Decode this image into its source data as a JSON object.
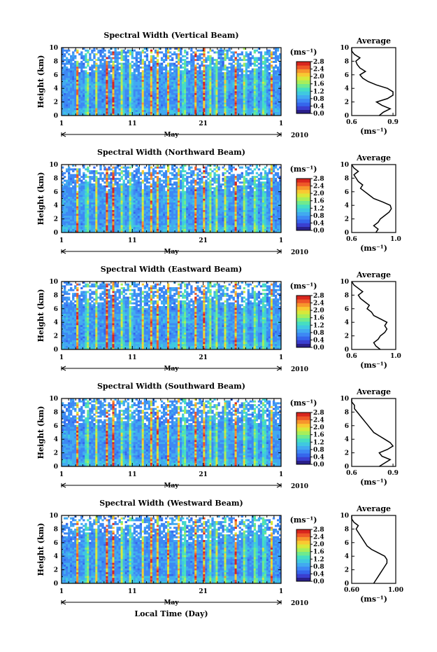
{
  "figure": {
    "x_axis_label": "Local Time (Day)",
    "month_label": "May",
    "year_label": "2010",
    "height_label": "Height (km)",
    "avg_title": "Average",
    "unit_label": "(ms⁻¹)"
  },
  "colors": [
    "#2a1f8a",
    "#3a3fd0",
    "#3566ec",
    "#3d88f4",
    "#41aaf0",
    "#3fc9e0",
    "#45dec2",
    "#6fea8e",
    "#a8ee5a",
    "#d8e83a",
    "#f8c932",
    "#f7952c",
    "#ee5828",
    "#d8261e"
  ],
  "chart_data": [
    {
      "type": "heatmap",
      "title": "Spectral Width (Vertical Beam)",
      "ylabel": "Height (km)",
      "xlabel": "",
      "ylim": [
        0,
        10
      ],
      "xlim": [
        1,
        32
      ],
      "x_ticks": [
        "1",
        "11",
        "21",
        "1"
      ],
      "y_ticks": [
        "0",
        "2",
        "4",
        "6",
        "8",
        "10"
      ],
      "colorbar": {
        "label": "(ms⁻¹)",
        "range": [
          0.0,
          2.8
        ],
        "ticks": [
          "0.0",
          "0.4",
          "0.8",
          "1.2",
          "1.6",
          "2.0",
          "2.4",
          "2.8"
        ]
      },
      "avg_profile": {
        "title": "Average",
        "xlabel": "(ms⁻¹)",
        "xlim": [
          0.6,
          0.92
        ],
        "x_ticks": [
          "0.6",
          "0.9"
        ],
        "height": [
          0,
          0.5,
          1,
          1.5,
          2,
          2.5,
          3,
          3.5,
          4,
          4.5,
          5,
          5.5,
          6,
          6.5,
          7,
          7.5,
          8,
          8.5,
          9,
          9.5,
          10
        ],
        "value": [
          0.8,
          0.83,
          0.88,
          0.82,
          0.78,
          0.86,
          0.9,
          0.9,
          0.86,
          0.78,
          0.72,
          0.68,
          0.66,
          0.7,
          0.66,
          0.64,
          0.63,
          0.66,
          0.62,
          0.6,
          0.6
        ]
      }
    },
    {
      "type": "heatmap",
      "title": "Spectral Width (Northward Beam)",
      "ylabel": "Height (km)",
      "xlabel": "",
      "ylim": [
        0,
        10
      ],
      "xlim": [
        1,
        32
      ],
      "x_ticks": [
        "1",
        "11",
        "21",
        "1"
      ],
      "y_ticks": [
        "0",
        "2",
        "4",
        "6",
        "8",
        "10"
      ],
      "colorbar": {
        "label": "(ms⁻¹)",
        "range": [
          0.0,
          2.8
        ],
        "ticks": [
          "0.0",
          "0.4",
          "0.8",
          "1.2",
          "1.6",
          "2.0",
          "2.4",
          "2.8"
        ]
      },
      "avg_profile": {
        "title": "Average",
        "xlabel": "(ms⁻¹)",
        "xlim": [
          0.6,
          1.0
        ],
        "x_ticks": [
          "0.6",
          "1.0"
        ],
        "height": [
          0,
          0.5,
          1,
          1.5,
          2,
          2.5,
          3,
          3.5,
          4,
          4.5,
          5,
          5.5,
          6,
          6.5,
          7,
          7.5,
          8,
          8.5,
          9,
          9.5,
          10
        ],
        "value": [
          0.82,
          0.84,
          0.8,
          0.84,
          0.86,
          0.9,
          0.94,
          0.96,
          0.95,
          0.88,
          0.8,
          0.76,
          0.72,
          0.68,
          0.7,
          0.66,
          0.64,
          0.62,
          0.66,
          0.62,
          0.6
        ]
      }
    },
    {
      "type": "heatmap",
      "title": "Spectral Width (Eastward Beam)",
      "ylabel": "Height (km)",
      "xlabel": "",
      "ylim": [
        0,
        10
      ],
      "xlim": [
        1,
        32
      ],
      "x_ticks": [
        "1",
        "11",
        "21",
        "1"
      ],
      "y_ticks": [
        "0",
        "2",
        "4",
        "6",
        "8",
        "10"
      ],
      "colorbar": {
        "label": "(ms⁻¹)",
        "range": [
          0.0,
          2.8
        ],
        "ticks": [
          "0.0",
          "0.4",
          "0.8",
          "1.2",
          "1.6",
          "2.0",
          "2.4",
          "2.8"
        ]
      },
      "avg_profile": {
        "title": "Average",
        "xlabel": "(ms⁻¹)",
        "xlim": [
          0.6,
          1.0
        ],
        "x_ticks": [
          "0.6",
          "1.0"
        ],
        "height": [
          0,
          0.5,
          1,
          1.5,
          2,
          2.5,
          3,
          3.5,
          4,
          4.5,
          5,
          5.5,
          6,
          6.5,
          7,
          7.5,
          8,
          8.5,
          9,
          9.5,
          10
        ],
        "value": [
          0.86,
          0.82,
          0.8,
          0.84,
          0.86,
          0.9,
          0.92,
          0.9,
          0.92,
          0.86,
          0.8,
          0.78,
          0.74,
          0.76,
          0.72,
          0.68,
          0.66,
          0.7,
          0.66,
          0.62,
          0.6
        ]
      }
    },
    {
      "type": "heatmap",
      "title": "Spectral Width (Southward Beam)",
      "ylabel": "Height (km)",
      "xlabel": "",
      "ylim": [
        0,
        10
      ],
      "xlim": [
        1,
        32
      ],
      "x_ticks": [
        "1",
        "11",
        "21",
        "1"
      ],
      "y_ticks": [
        "0",
        "2",
        "4",
        "6",
        "8",
        "10"
      ],
      "colorbar": {
        "label": "(ms⁻¹)",
        "range": [
          0.0,
          2.8
        ],
        "ticks": [
          "0.0",
          "0.4",
          "0.8",
          "1.2",
          "1.6",
          "2.0",
          "2.4",
          "2.8"
        ]
      },
      "avg_profile": {
        "title": "Average",
        "xlabel": "(ms⁻¹)",
        "xlim": [
          0.6,
          0.92
        ],
        "x_ticks": [
          "0.6",
          "0.9"
        ],
        "height": [
          0,
          0.5,
          1,
          1.5,
          2,
          2.5,
          3,
          3.5,
          4,
          4.5,
          5,
          5.5,
          6,
          6.5,
          7,
          7.5,
          8,
          8.5,
          9,
          9.5,
          10
        ],
        "value": [
          0.8,
          0.84,
          0.88,
          0.82,
          0.8,
          0.86,
          0.9,
          0.88,
          0.84,
          0.8,
          0.76,
          0.74,
          0.72,
          0.7,
          0.68,
          0.66,
          0.64,
          0.62,
          0.62,
          0.6,
          0.6
        ]
      }
    },
    {
      "type": "heatmap",
      "title": "Spectral Width (Westward Beam)",
      "ylabel": "Height (km)",
      "xlabel": "Local Time (Day)",
      "ylim": [
        0,
        10
      ],
      "xlim": [
        1,
        32
      ],
      "x_ticks": [
        "1",
        "11",
        "21",
        "1"
      ],
      "y_ticks": [
        "0",
        "2",
        "4",
        "6",
        "8",
        "10"
      ],
      "colorbar": {
        "label": "(ms⁻¹)",
        "range": [
          0.0,
          2.8
        ],
        "ticks": [
          "0.0",
          "0.4",
          "0.8",
          "1.2",
          "1.6",
          "2.0",
          "2.4",
          "2.8"
        ]
      },
      "avg_profile": {
        "title": "Average",
        "xlabel": "(ms⁻¹)",
        "xlim": [
          0.6,
          1.0
        ],
        "x_ticks": [
          "0.60",
          "1.00"
        ],
        "height": [
          0,
          0.5,
          1,
          1.5,
          2,
          2.5,
          3,
          3.5,
          4,
          4.5,
          5,
          5.5,
          6,
          6.5,
          7,
          7.5,
          8,
          8.5,
          9,
          9.5,
          10
        ],
        "value": [
          0.8,
          0.82,
          0.84,
          0.86,
          0.88,
          0.9,
          0.92,
          0.92,
          0.9,
          0.84,
          0.78,
          0.74,
          0.72,
          0.7,
          0.68,
          0.66,
          0.64,
          0.66,
          0.62,
          0.6,
          0.6
        ]
      }
    }
  ]
}
